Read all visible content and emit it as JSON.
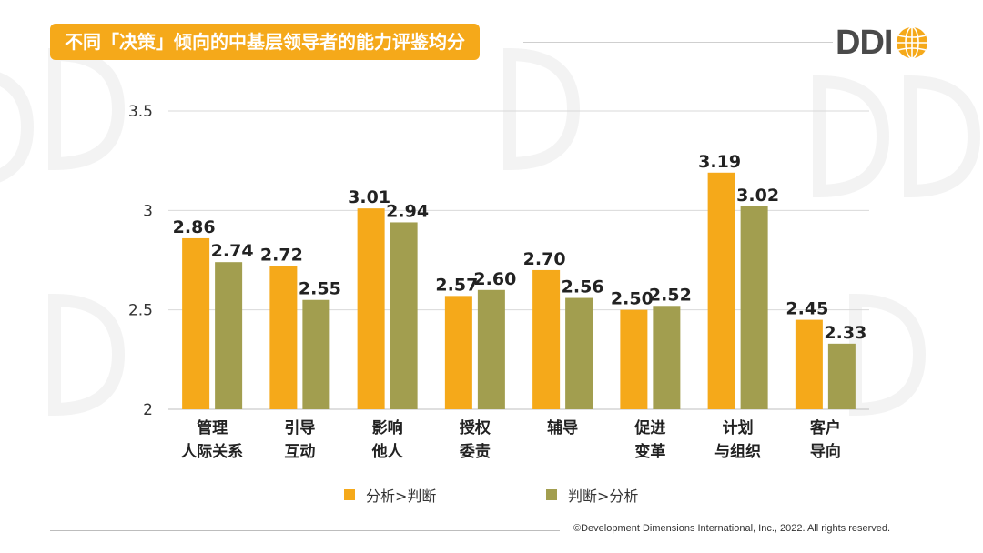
{
  "header": {
    "title": "不同「决策」倾向的中基层领导者的能力评鉴均分"
  },
  "logo": {
    "text": "DDI"
  },
  "footer": {
    "copyright": "©Development Dimensions International, Inc., 2022. All rights reserved."
  },
  "colors": {
    "series1": "#f5a91a",
    "series2": "#a29e4f",
    "accent": "#f5a91a",
    "grid": "#d9d9d9"
  },
  "chart_data": {
    "type": "bar",
    "title": "不同「决策」倾向的中基层领导者的能力评鉴均分",
    "categories": [
      [
        "管理",
        "人际关系"
      ],
      [
        "引导",
        "互动"
      ],
      [
        "影响",
        "他人"
      ],
      [
        "授权",
        "委责"
      ],
      [
        "辅导"
      ],
      [
        "促进",
        "变革"
      ],
      [
        "计划",
        "与组织"
      ],
      [
        "客户",
        "导向"
      ]
    ],
    "series": [
      {
        "name": "分析>判断",
        "values": [
          2.86,
          2.72,
          3.01,
          2.57,
          2.7,
          2.5,
          3.19,
          2.45
        ],
        "labels": [
          "2.86",
          "2.72",
          "3.01",
          "2.57",
          "2.70",
          "2.50",
          "3.19",
          "2.45"
        ]
      },
      {
        "name": "判断>分析",
        "values": [
          2.74,
          2.55,
          2.94,
          2.6,
          2.56,
          2.52,
          3.02,
          2.33
        ],
        "labels": [
          "2.74",
          "2.55",
          "2.94",
          "2.60",
          "2.56",
          "2.52",
          "3.02",
          "2.33"
        ]
      }
    ],
    "yticks": [
      2,
      2.5,
      3,
      3.5
    ],
    "ytick_labels": [
      "2",
      "2.5",
      "3",
      "3.5"
    ],
    "ylim": [
      2,
      3.5
    ],
    "xlabel": "",
    "ylabel": "",
    "grid": true,
    "legend_position": "bottom"
  }
}
